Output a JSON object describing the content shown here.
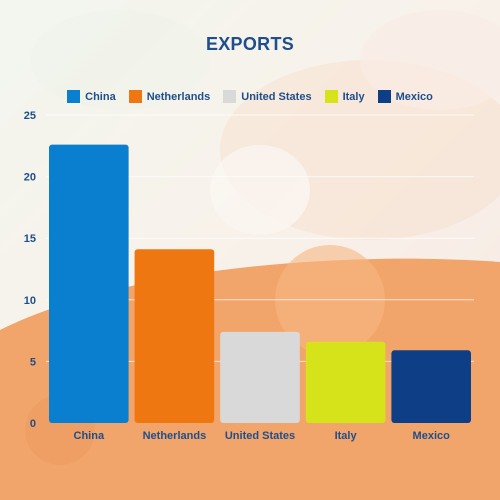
{
  "chart_data": {
    "type": "bar",
    "title": "EXPORTS",
    "categories": [
      "China",
      "Netherlands",
      "United States",
      "Italy",
      "Mexico"
    ],
    "values": [
      22.6,
      14.1,
      7.4,
      6.6,
      5.9
    ],
    "colors": [
      "#0a7fd0",
      "#ee7711",
      "#d9d9d9",
      "#d6e21a",
      "#0e3f86"
    ],
    "ylim": [
      0,
      25
    ],
    "yticks": [
      0,
      5,
      10,
      15,
      20,
      25
    ],
    "grid": true,
    "legend_position": "top"
  }
}
